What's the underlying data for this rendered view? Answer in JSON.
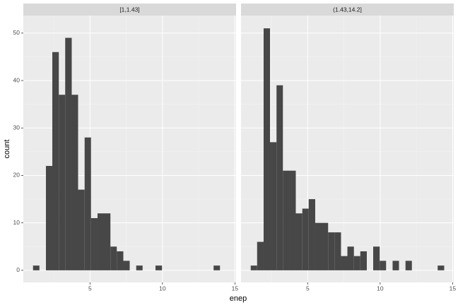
{
  "chart_data": {
    "type": "histogram",
    "xlabel": "enep",
    "ylabel": "count",
    "color": "#474747",
    "grid": true,
    "bins": [
      1.07,
      1.51,
      1.96,
      2.4,
      2.85,
      3.29,
      3.74,
      4.18,
      4.63,
      5.07,
      5.52,
      5.96,
      6.41,
      6.85,
      7.3,
      7.74,
      8.19,
      8.63,
      9.08,
      9.52,
      9.97,
      10.41,
      10.86,
      11.3,
      11.75,
      12.19,
      12.64,
      13.08,
      13.53,
      13.97,
      14.42
    ],
    "xlim": [
      0.4,
      15.08
    ],
    "xticks": [
      5,
      10,
      15
    ],
    "ylim": [
      -2.55,
      53.7
    ],
    "yticks": [
      0,
      10,
      20,
      30,
      40,
      50
    ],
    "panels": [
      {
        "strip": "[1,1.43]",
        "counts": [
          1,
          0,
          22,
          46,
          37,
          49,
          37,
          17,
          28,
          11,
          12,
          12,
          5,
          4,
          2,
          0,
          1,
          0,
          0,
          1,
          0,
          0,
          0,
          0,
          0,
          0,
          0,
          0,
          1,
          0
        ]
      },
      {
        "strip": "(1.43,14.2]",
        "counts": [
          1,
          6,
          51,
          27,
          39,
          21,
          21,
          12,
          13,
          15,
          10,
          10,
          8,
          8,
          3,
          5,
          3,
          4,
          0,
          5,
          2,
          0,
          2,
          0,
          2,
          0,
          0,
          0,
          0,
          1
        ]
      }
    ]
  }
}
